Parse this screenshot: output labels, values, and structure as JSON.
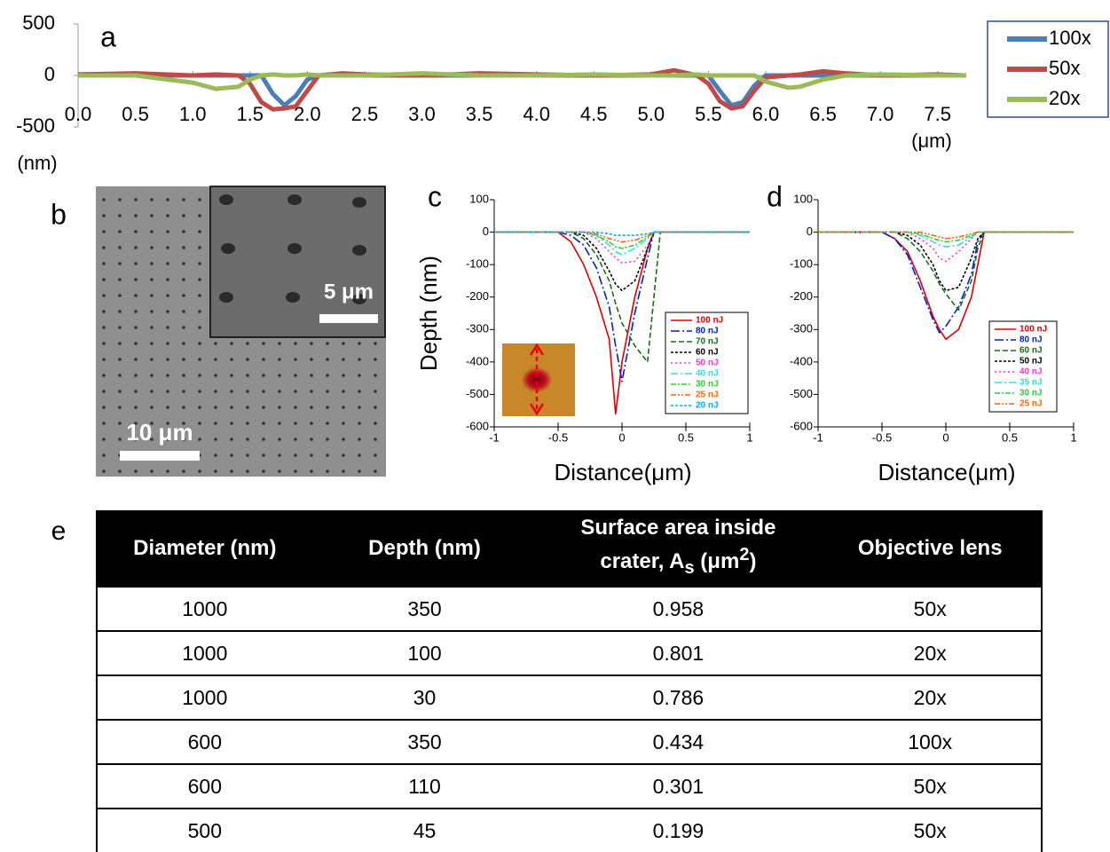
{
  "chart_data": [
    {
      "type": "line",
      "label": "a",
      "y_unit": "(nm)",
      "x_unit": "(μm)",
      "legend": "right",
      "xlim": [
        0,
        7.75
      ],
      "xticks": [
        {
          "value": 0,
          "label": "0.0"
        },
        0.5,
        {
          "value": 1,
          "label": "1.0"
        },
        1.5,
        {
          "value": 2,
          "label": "2.0"
        },
        2.5,
        {
          "value": 3,
          "label": "3.0"
        },
        3.5,
        {
          "value": 4,
          "label": "4.0"
        },
        4.5,
        {
          "value": 5,
          "label": "5.0"
        },
        5.5,
        {
          "value": 6,
          "label": "6.0"
        },
        6.5,
        {
          "value": 7,
          "label": "7.0"
        },
        7.5
      ],
      "ylim": [
        -500,
        500
      ],
      "yticks": [
        500,
        0,
        -500
      ],
      "x": [
        0,
        0.5,
        1.0,
        1.2,
        1.4,
        1.5,
        1.6,
        1.7,
        1.8,
        1.9,
        2.0,
        2.1,
        2.3,
        2.5,
        3.0,
        3.5,
        4.0,
        4.5,
        5.0,
        5.2,
        5.4,
        5.5,
        5.6,
        5.7,
        5.8,
        5.9,
        6.0,
        6.2,
        6.3,
        6.5,
        6.7,
        7.0,
        7.5,
        7.75
      ],
      "series": [
        {
          "name": "100x",
          "color": "#4a7ebb",
          "values": [
            0,
            0,
            0,
            0,
            0,
            0,
            0,
            -180,
            -290,
            -200,
            -40,
            0,
            0,
            0,
            0,
            0,
            0,
            0,
            0,
            0,
            0,
            0,
            -150,
            -290,
            -260,
            -100,
            0,
            0,
            0,
            0,
            0,
            0,
            0,
            0
          ]
        },
        {
          "name": "50x",
          "color": "#be4b48",
          "values": [
            10,
            20,
            0,
            10,
            0,
            -80,
            -260,
            -330,
            -320,
            -300,
            -150,
            0,
            20,
            10,
            0,
            20,
            10,
            0,
            10,
            50,
            0,
            -80,
            -250,
            -320,
            -300,
            -150,
            -20,
            0,
            10,
            40,
            20,
            0,
            10,
            0
          ]
        },
        {
          "name": "20x",
          "color": "#9bbb59",
          "values": [
            0,
            0,
            -70,
            -130,
            -110,
            -40,
            0,
            10,
            0,
            0,
            10,
            0,
            0,
            0,
            20,
            0,
            0,
            10,
            0,
            0,
            10,
            0,
            0,
            0,
            0,
            0,
            -60,
            -120,
            -110,
            -40,
            0,
            10,
            0,
            0
          ]
        }
      ]
    },
    {
      "type": "line",
      "label": "c",
      "ylabel": "Depth (nm)",
      "xlabel": "Distance(μm)",
      "xlim": [
        -1,
        1
      ],
      "xticks": [
        -1,
        -0.5,
        0,
        0.5,
        1
      ],
      "ylim": [
        -600,
        100
      ],
      "yticks": [
        100,
        0,
        -100,
        -200,
        -300,
        -400,
        -500,
        -600
      ],
      "x": [
        -1,
        -0.5,
        -0.4,
        -0.3,
        -0.2,
        -0.1,
        -0.05,
        0,
        0.1,
        0.2,
        0.25,
        0.3,
        0.5,
        1
      ],
      "series": [
        {
          "name": "100 nJ",
          "color": "#e00000",
          "values": [
            0,
            0,
            -30,
            -100,
            -200,
            -330,
            -560,
            -400,
            -200,
            -50,
            0,
            0,
            0,
            0
          ]
        },
        {
          "name": "80 nJ",
          "color": "#0022cc",
          "values": [
            0,
            0,
            -10,
            -40,
            -110,
            -230,
            -350,
            -460,
            -250,
            -80,
            0,
            0,
            0,
            0
          ]
        },
        {
          "name": "70 nJ",
          "color": "#1a6b1a",
          "values": [
            0,
            0,
            0,
            -20,
            -70,
            -150,
            -220,
            -280,
            -350,
            -400,
            -200,
            0,
            0,
            0
          ]
        },
        {
          "name": "60 nJ",
          "color": "#000000",
          "values": [
            0,
            0,
            0,
            -10,
            -50,
            -120,
            -160,
            -180,
            -150,
            -50,
            0,
            0,
            0,
            0
          ]
        },
        {
          "name": "50 nJ",
          "color": "#ff33cc",
          "values": [
            0,
            0,
            0,
            0,
            -20,
            -60,
            -80,
            -95,
            -90,
            -40,
            0,
            0,
            0,
            0
          ]
        },
        {
          "name": "40 nJ",
          "color": "#33dddd",
          "values": [
            0,
            0,
            0,
            0,
            -10,
            -40,
            -60,
            -70,
            -50,
            -20,
            0,
            0,
            0,
            0
          ]
        },
        {
          "name": "30 nJ",
          "color": "#33cc33",
          "values": [
            0,
            0,
            0,
            0,
            -10,
            -30,
            -45,
            -50,
            -40,
            -15,
            0,
            0,
            0,
            0
          ]
        },
        {
          "name": "25 nJ",
          "color": "#ff6600",
          "values": [
            0,
            0,
            0,
            0,
            -5,
            -20,
            -25,
            -30,
            -25,
            -10,
            0,
            0,
            0,
            0
          ]
        },
        {
          "name": "20 nJ",
          "color": "#00aaff",
          "values": [
            0,
            0,
            0,
            0,
            0,
            -5,
            -10,
            -10,
            -10,
            -5,
            0,
            0,
            0,
            0
          ]
        }
      ]
    },
    {
      "type": "line",
      "label": "d",
      "xlabel": "Distance(μm)",
      "xlim": [
        -1,
        1
      ],
      "xticks": [
        -1,
        -0.5,
        0,
        0.5,
        1
      ],
      "ylim": [
        -600,
        100
      ],
      "yticks": [
        100,
        0,
        -100,
        -200,
        -300,
        -400,
        -500,
        -600
      ],
      "x": [
        -1,
        -0.5,
        -0.4,
        -0.3,
        -0.2,
        -0.1,
        -0.05,
        0,
        0.1,
        0.2,
        0.25,
        0.3,
        0.5,
        1
      ],
      "series": [
        {
          "name": "100 nJ",
          "color": "#e00000",
          "values": [
            0,
            0,
            -20,
            -60,
            -150,
            -260,
            -300,
            -330,
            -300,
            -200,
            -100,
            0,
            0,
            0
          ]
        },
        {
          "name": "80 nJ",
          "color": "#0022cc",
          "values": [
            0,
            0,
            -20,
            -70,
            -170,
            -270,
            -310,
            -290,
            -230,
            -130,
            -30,
            0,
            0,
            0
          ]
        },
        {
          "name": "60 nJ",
          "color": "#1a6b1a",
          "values": [
            0,
            0,
            0,
            -20,
            -60,
            -120,
            -160,
            -190,
            -240,
            -150,
            -50,
            0,
            0,
            0
          ]
        },
        {
          "name": "50 nJ",
          "color": "#000000",
          "values": [
            0,
            0,
            0,
            -10,
            -40,
            -100,
            -150,
            -180,
            -170,
            -80,
            -20,
            0,
            0,
            0
          ]
        },
        {
          "name": "40 nJ",
          "color": "#ff33cc",
          "values": [
            0,
            0,
            0,
            0,
            -20,
            -50,
            -80,
            -90,
            -60,
            -20,
            0,
            0,
            0,
            0
          ]
        },
        {
          "name": "35 nJ",
          "color": "#33dddd",
          "values": [
            0,
            0,
            0,
            0,
            -10,
            -30,
            -40,
            -45,
            -40,
            -15,
            0,
            0,
            0,
            0
          ]
        },
        {
          "name": "30 nJ",
          "color": "#33cc33",
          "values": [
            0,
            0,
            0,
            0,
            -5,
            -20,
            -25,
            -30,
            -25,
            -10,
            0,
            0,
            0,
            0
          ]
        },
        {
          "name": "25 nJ",
          "color": "#ff6600",
          "values": [
            0,
            0,
            0,
            0,
            0,
            -10,
            -15,
            -20,
            -15,
            -5,
            0,
            0,
            0,
            0
          ]
        }
      ]
    }
  ],
  "sem": {
    "label": "b",
    "scale_main": "10 μm",
    "scale_inset": "5 μm"
  },
  "table": {
    "label": "e",
    "header": [
      "Diameter (nm)",
      "Depth (nm)",
      {
        "line1": "Surface area  inside",
        "line2": "crater, A",
        "sub": "s",
        "rest": " (μm",
        "sup": "2",
        "end": ")"
      },
      "Objective lens"
    ],
    "rows": [
      [
        "1000",
        "350",
        "0.958",
        "50x"
      ],
      [
        "1000",
        "100",
        "0.801",
        "20x"
      ],
      [
        "1000",
        "30",
        "0.786",
        "20x"
      ],
      [
        "600",
        "350",
        "0.434",
        "100x"
      ],
      [
        "600",
        "110",
        "0.301",
        "50x"
      ],
      [
        "500",
        "45",
        "0.199",
        "50x"
      ]
    ]
  }
}
